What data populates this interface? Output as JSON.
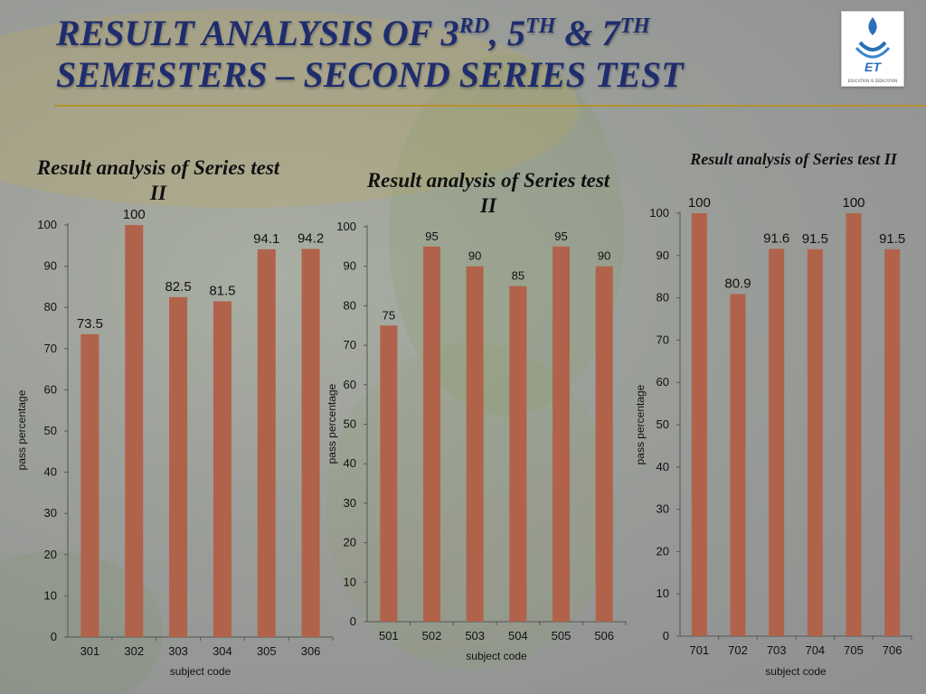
{
  "slide": {
    "title_line1_parts": [
      "RESULT ANALYSIS OF 3",
      "RD",
      ", 5",
      "TH",
      " & 7",
      "TH"
    ],
    "title_line2": "SEMESTERS – SECOND SERIES TEST",
    "logo_caption": "EDUCATION IS DEDICATION",
    "logo_mark": "ET"
  },
  "colors": {
    "bar": "#b0634a",
    "title": "#1f2d6e",
    "rule": "#b5902e",
    "axis": "#555555"
  },
  "chart_data": [
    {
      "type": "bar",
      "title": "Result analysis of Series test II",
      "xlabel": "subject code",
      "ylabel": "pass percentage",
      "categories": [
        "301",
        "302",
        "303",
        "304",
        "305",
        "306"
      ],
      "values": [
        73.5,
        100,
        82.5,
        81.5,
        94.1,
        94.2
      ],
      "ylim": [
        0,
        100
      ],
      "yticks": [
        0,
        10,
        20,
        30,
        40,
        50,
        60,
        70,
        80,
        90,
        100
      ],
      "data_labels": [
        "73.5",
        "100",
        "82.5",
        "81.5",
        "94.1",
        "94.2"
      ],
      "grid": false,
      "legend": "none"
    },
    {
      "type": "bar",
      "title": "Result analysis of Series test II",
      "xlabel": "subject code",
      "ylabel": "pass percentage",
      "categories": [
        "501",
        "502",
        "503",
        "504",
        "505",
        "506"
      ],
      "values": [
        75,
        95,
        90,
        85,
        95,
        90
      ],
      "ylim": [
        0,
        100
      ],
      "yticks": [
        0,
        10,
        20,
        30,
        40,
        50,
        60,
        70,
        80,
        90,
        100
      ],
      "data_labels": [
        "75",
        "95",
        "90",
        "85",
        "95",
        "90"
      ],
      "grid": false,
      "legend": "none"
    },
    {
      "type": "bar",
      "title": "Result analysis of Series test II",
      "xlabel": "subject code",
      "ylabel": "pass percentage",
      "categories": [
        "701",
        "702",
        "703",
        "704",
        "705",
        "706"
      ],
      "values": [
        100,
        80.9,
        91.6,
        91.5,
        100,
        91.5
      ],
      "ylim": [
        0,
        100
      ],
      "yticks": [
        0,
        10,
        20,
        30,
        40,
        50,
        60,
        70,
        80,
        90,
        100
      ],
      "data_labels": [
        "100",
        "80.9",
        "91.6",
        "91.5",
        "100",
        "91.5"
      ],
      "grid": false,
      "legend": "none"
    }
  ]
}
